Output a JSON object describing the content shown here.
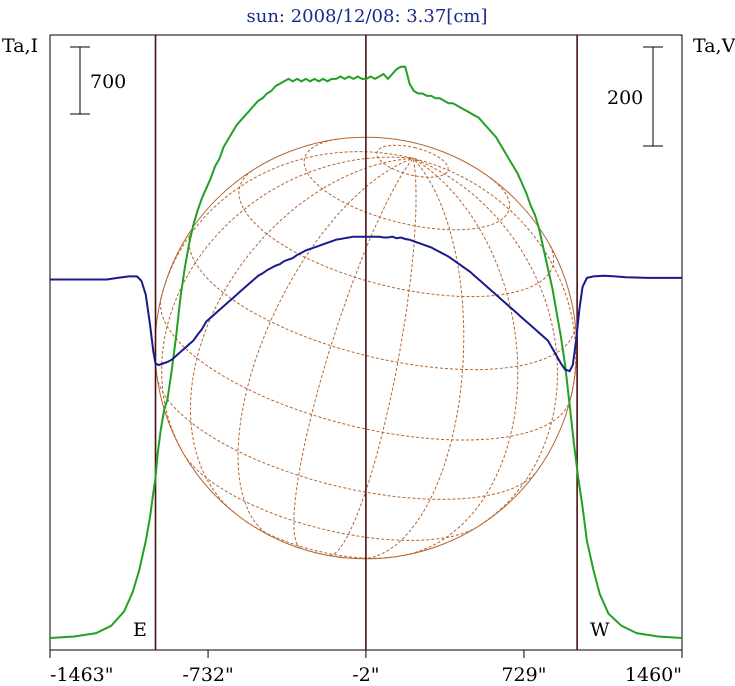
{
  "chart_data": {
    "type": "line",
    "title": "sun: 2008/12/08: 3.37[cm]",
    "left_axis_label": "Ta,I",
    "right_axis_label": "Ta,V",
    "left_scale_bar": "700",
    "right_scale_bar": "200",
    "east_label": "E",
    "west_label": "W",
    "xlim": [
      -1463,
      1460
    ],
    "x_tick_labels": [
      "-1463\"",
      "-732\"",
      "-2\"",
      "729\"",
      "1460\""
    ],
    "x_tick_values": [
      -1463,
      -732,
      -2,
      729,
      1460
    ],
    "grid": false,
    "vertical_markers": [
      -975,
      -2,
      975
    ],
    "solar_disk": {
      "center_x": -2,
      "radius": 975
    },
    "colors": {
      "stokes_I": "#22a022",
      "stokes_V": "#1a1a8c",
      "disk": "#b5652e",
      "markers": "#4a1010",
      "title": "#1a2a8a"
    },
    "series": [
      {
        "key": "I",
        "color": "#22a022",
        "points": [
          [
            -1463,
            0
          ],
          [
            -1350,
            3
          ],
          [
            -1250,
            10
          ],
          [
            -1180,
            25
          ],
          [
            -1120,
            55
          ],
          [
            -1080,
            95
          ],
          [
            -1050,
            140
          ],
          [
            -1020,
            200
          ],
          [
            -1000,
            250
          ],
          [
            -985,
            300
          ],
          [
            -975,
            330
          ],
          [
            -965,
            380
          ],
          [
            -950,
            430
          ],
          [
            -935,
            470
          ],
          [
            -920,
            490
          ],
          [
            -900,
            550
          ],
          [
            -880,
            620
          ],
          [
            -860,
            700
          ],
          [
            -840,
            760
          ],
          [
            -820,
            810
          ],
          [
            -800,
            850
          ],
          [
            -780,
            880
          ],
          [
            -760,
            905
          ],
          [
            -740,
            925
          ],
          [
            -720,
            945
          ],
          [
            -700,
            970
          ],
          [
            -680,
            985
          ],
          [
            -660,
            1010
          ],
          [
            -640,
            1025
          ],
          [
            -620,
            1040
          ],
          [
            -600,
            1055
          ],
          [
            -580,
            1065
          ],
          [
            -560,
            1075
          ],
          [
            -540,
            1085
          ],
          [
            -520,
            1095
          ],
          [
            -500,
            1105
          ],
          [
            -480,
            1110
          ],
          [
            -460,
            1120
          ],
          [
            -440,
            1125
          ],
          [
            -420,
            1135
          ],
          [
            -400,
            1140
          ],
          [
            -380,
            1145
          ],
          [
            -360,
            1150
          ],
          [
            -340,
            1145
          ],
          [
            -320,
            1150
          ],
          [
            -300,
            1145
          ],
          [
            -280,
            1150
          ],
          [
            -260,
            1145
          ],
          [
            -240,
            1150
          ],
          [
            -220,
            1145
          ],
          [
            -200,
            1150
          ],
          [
            -180,
            1145
          ],
          [
            -160,
            1150
          ],
          [
            -140,
            1150
          ],
          [
            -120,
            1155
          ],
          [
            -100,
            1150
          ],
          [
            -80,
            1155
          ],
          [
            -60,
            1150
          ],
          [
            -40,
            1155
          ],
          [
            -20,
            1150
          ],
          [
            0,
            1150
          ],
          [
            20,
            1155
          ],
          [
            40,
            1150
          ],
          [
            60,
            1155
          ],
          [
            80,
            1160
          ],
          [
            100,
            1150
          ],
          [
            120,
            1160
          ],
          [
            140,
            1170
          ],
          [
            160,
            1175
          ],
          [
            180,
            1175
          ],
          [
            200,
            1140
          ],
          [
            220,
            1125
          ],
          [
            240,
            1120
          ],
          [
            260,
            1120
          ],
          [
            280,
            1115
          ],
          [
            300,
            1115
          ],
          [
            320,
            1110
          ],
          [
            340,
            1110
          ],
          [
            360,
            1105
          ],
          [
            380,
            1100
          ],
          [
            400,
            1100
          ],
          [
            420,
            1095
          ],
          [
            440,
            1090
          ],
          [
            460,
            1085
          ],
          [
            480,
            1080
          ],
          [
            500,
            1075
          ],
          [
            520,
            1070
          ],
          [
            540,
            1060
          ],
          [
            560,
            1050
          ],
          [
            580,
            1040
          ],
          [
            600,
            1030
          ],
          [
            620,
            1015
          ],
          [
            640,
            1000
          ],
          [
            660,
            985
          ],
          [
            680,
            970
          ],
          [
            700,
            955
          ],
          [
            720,
            935
          ],
          [
            740,
            915
          ],
          [
            760,
            890
          ],
          [
            780,
            870
          ],
          [
            800,
            840
          ],
          [
            820,
            800
          ],
          [
            840,
            760
          ],
          [
            860,
            720
          ],
          [
            880,
            670
          ],
          [
            900,
            620
          ],
          [
            920,
            560
          ],
          [
            940,
            480
          ],
          [
            960,
            400
          ],
          [
            980,
            330
          ],
          [
            1000,
            270
          ],
          [
            1020,
            200
          ],
          [
            1050,
            140
          ],
          [
            1080,
            90
          ],
          [
            1120,
            50
          ],
          [
            1180,
            25
          ],
          [
            1250,
            10
          ],
          [
            1350,
            3
          ],
          [
            1460,
            0
          ]
        ]
      },
      {
        "key": "V",
        "color": "#1a1a8c",
        "points": [
          [
            -1463,
            0
          ],
          [
            -1200,
            0
          ],
          [
            -1150,
            2
          ],
          [
            -1100,
            4
          ],
          [
            -1060,
            4
          ],
          [
            -1040,
            -2
          ],
          [
            -1020,
            -20
          ],
          [
            -1000,
            -60
          ],
          [
            -985,
            -95
          ],
          [
            -975,
            -110
          ],
          [
            -960,
            -112
          ],
          [
            -940,
            -110
          ],
          [
            -920,
            -108
          ],
          [
            -900,
            -105
          ],
          [
            -880,
            -100
          ],
          [
            -860,
            -95
          ],
          [
            -840,
            -90
          ],
          [
            -820,
            -85
          ],
          [
            -800,
            -80
          ],
          [
            -780,
            -72
          ],
          [
            -760,
            -65
          ],
          [
            -740,
            -55
          ],
          [
            -720,
            -50
          ],
          [
            -700,
            -45
          ],
          [
            -680,
            -40
          ],
          [
            -660,
            -35
          ],
          [
            -640,
            -30
          ],
          [
            -620,
            -25
          ],
          [
            -600,
            -20
          ],
          [
            -580,
            -15
          ],
          [
            -560,
            -10
          ],
          [
            -540,
            -5
          ],
          [
            -520,
            0
          ],
          [
            -500,
            5
          ],
          [
            -480,
            8
          ],
          [
            -460,
            12
          ],
          [
            -440,
            15
          ],
          [
            -420,
            18
          ],
          [
            -400,
            20
          ],
          [
            -380,
            24
          ],
          [
            -360,
            26
          ],
          [
            -340,
            28
          ],
          [
            -320,
            32
          ],
          [
            -300,
            35
          ],
          [
            -280,
            38
          ],
          [
            -260,
            40
          ],
          [
            -240,
            42
          ],
          [
            -220,
            44
          ],
          [
            -200,
            46
          ],
          [
            -180,
            48
          ],
          [
            -160,
            50
          ],
          [
            -140,
            52
          ],
          [
            -120,
            53
          ],
          [
            -100,
            54
          ],
          [
            -80,
            55
          ],
          [
            -60,
            56
          ],
          [
            -40,
            56
          ],
          [
            -20,
            56
          ],
          [
            0,
            56
          ],
          [
            20,
            56
          ],
          [
            40,
            56
          ],
          [
            60,
            56
          ],
          [
            80,
            55
          ],
          [
            100,
            55
          ],
          [
            120,
            56
          ],
          [
            140,
            54
          ],
          [
            160,
            55
          ],
          [
            180,
            53
          ],
          [
            200,
            52
          ],
          [
            220,
            50
          ],
          [
            240,
            48
          ],
          [
            260,
            46
          ],
          [
            280,
            44
          ],
          [
            300,
            42
          ],
          [
            320,
            39
          ],
          [
            340,
            36
          ],
          [
            360,
            33
          ],
          [
            380,
            30
          ],
          [
            400,
            26
          ],
          [
            420,
            22
          ],
          [
            440,
            18
          ],
          [
            460,
            14
          ],
          [
            480,
            10
          ],
          [
            500,
            5
          ],
          [
            520,
            0
          ],
          [
            540,
            -5
          ],
          [
            560,
            -10
          ],
          [
            580,
            -15
          ],
          [
            600,
            -20
          ],
          [
            620,
            -25
          ],
          [
            640,
            -30
          ],
          [
            660,
            -35
          ],
          [
            680,
            -40
          ],
          [
            700,
            -45
          ],
          [
            720,
            -50
          ],
          [
            740,
            -55
          ],
          [
            760,
            -60
          ],
          [
            780,
            -65
          ],
          [
            800,
            -70
          ],
          [
            820,
            -75
          ],
          [
            840,
            -80
          ],
          [
            860,
            -90
          ],
          [
            880,
            -100
          ],
          [
            900,
            -110
          ],
          [
            920,
            -118
          ],
          [
            940,
            -120
          ],
          [
            955,
            -112
          ],
          [
            970,
            -80
          ],
          [
            985,
            -40
          ],
          [
            1000,
            -10
          ],
          [
            1020,
            2
          ],
          [
            1050,
            4
          ],
          [
            1100,
            5
          ],
          [
            1150,
            4
          ],
          [
            1200,
            3
          ],
          [
            1300,
            2
          ],
          [
            1460,
            2
          ]
        ]
      }
    ],
    "I_range": [
      0,
      1230
    ],
    "V_range": [
      -485,
      320
    ]
  }
}
